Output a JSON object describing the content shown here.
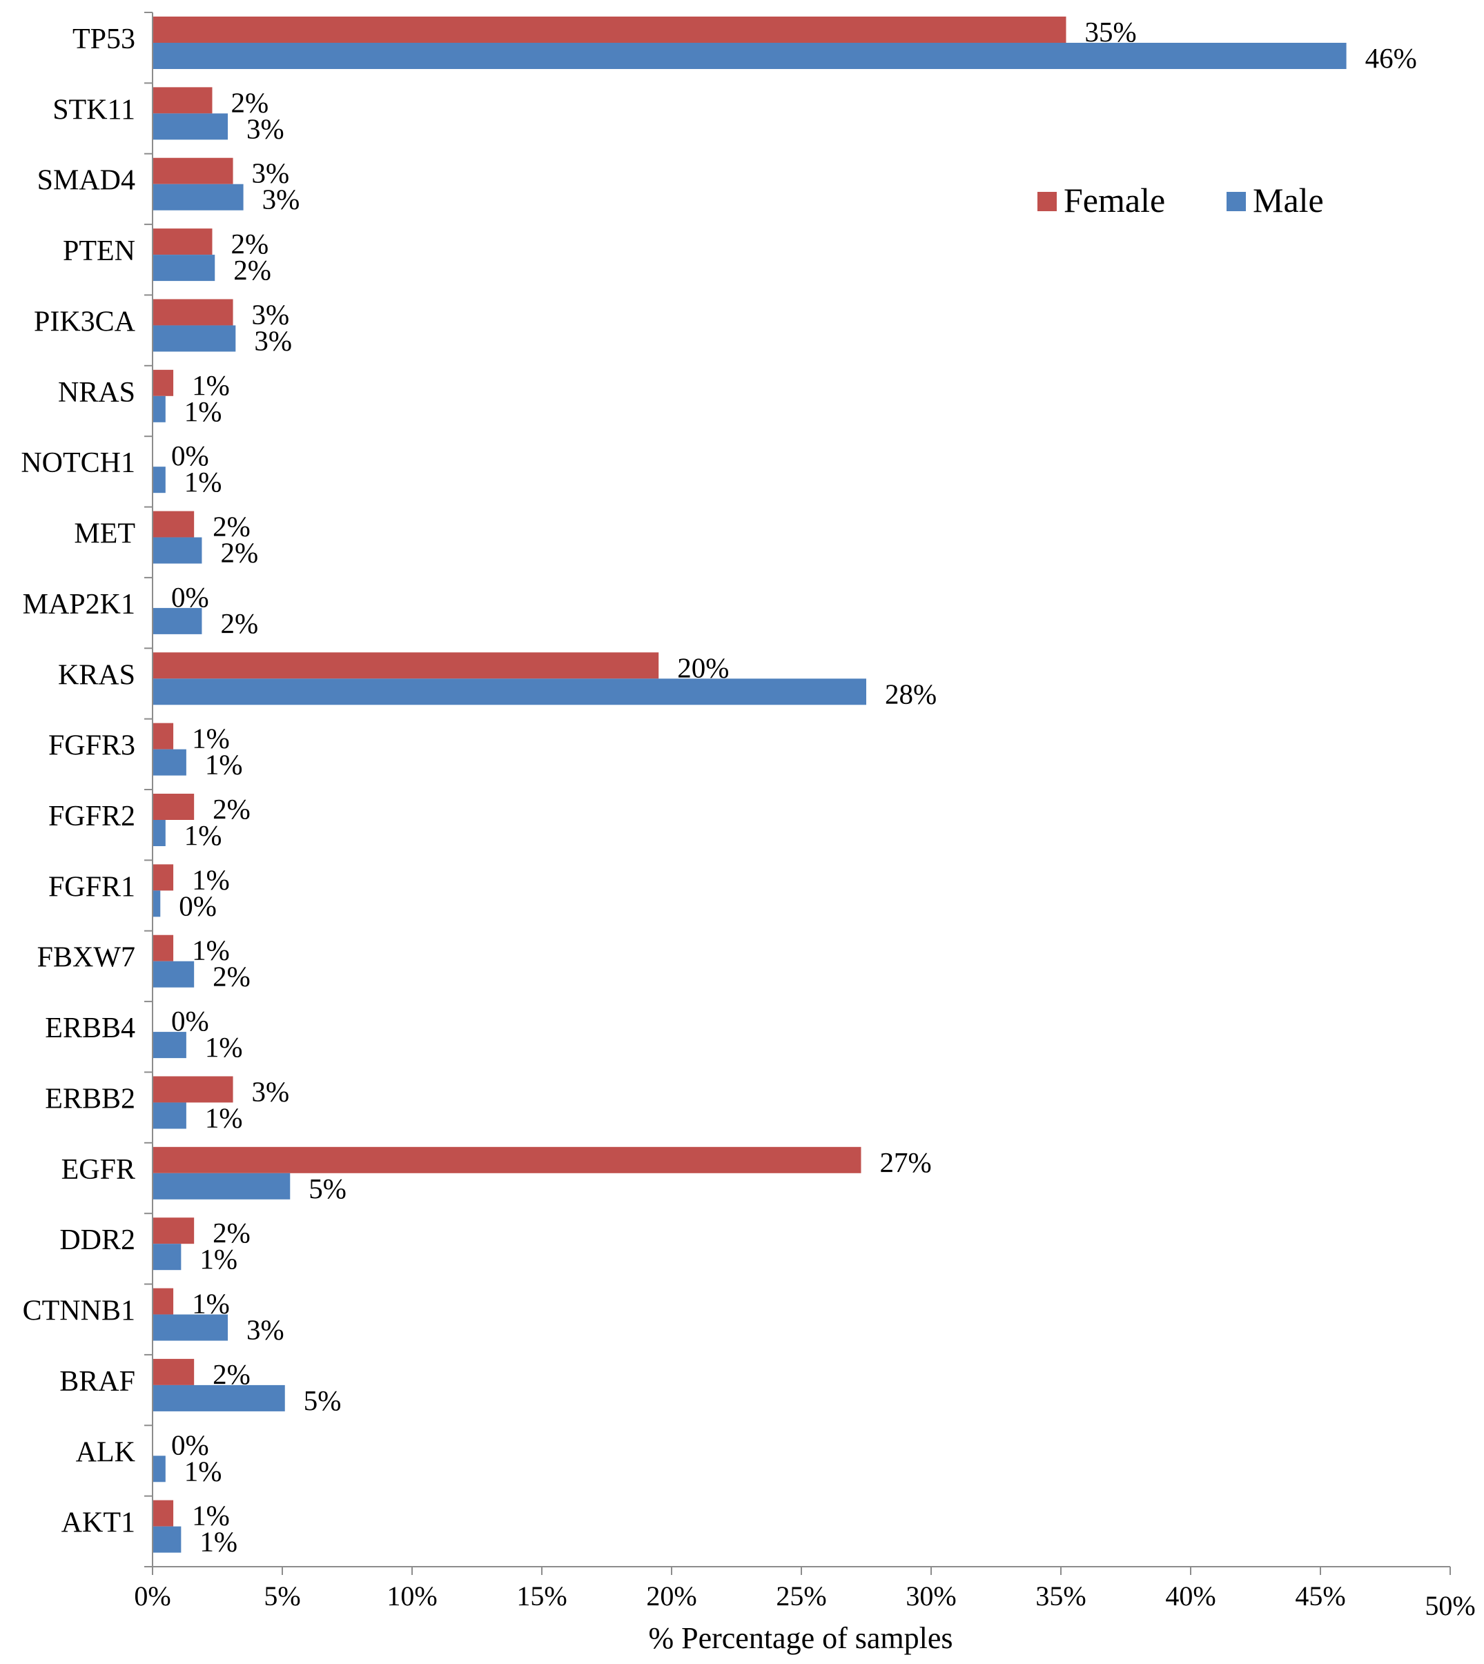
{
  "chart_data": {
    "type": "bar",
    "orientation": "horizontal",
    "xlabel": "%  Percentage of samples",
    "xlim": [
      0,
      50
    ],
    "x_ticks": [
      "0%",
      "5%",
      "10%",
      "15%",
      "20%",
      "25%",
      "30%",
      "35%",
      "40%",
      "45%",
      "50%"
    ],
    "legend_position": "top-right",
    "categories": [
      "TP53",
      "STK11",
      "SMAD4",
      "PTEN",
      "PIK3CA",
      "NRAS",
      "NOTCH1",
      "MET",
      "MAP2K1",
      "KRAS",
      "FGFR3",
      "FGFR2",
      "FGFR1",
      "FBXW7",
      "ERBB4",
      "ERBB2",
      "EGFR",
      "DDR2",
      "CTNNB1",
      "BRAF",
      "ALK",
      "AKT1"
    ],
    "series": [
      {
        "name": "Female",
        "color": "#c0504d",
        "values": [
          35.2,
          2.3,
          3.1,
          2.3,
          3.1,
          0.8,
          0.0,
          1.6,
          0.0,
          19.5,
          0.8,
          1.6,
          0.8,
          0.8,
          0.0,
          3.1,
          27.3,
          1.6,
          0.8,
          1.6,
          0.0,
          0.8
        ],
        "labels": [
          "35%",
          "2%",
          "3%",
          "2%",
          "3%",
          "1%",
          "0%",
          "2%",
          "0%",
          "20%",
          "1%",
          "2%",
          "1%",
          "1%",
          "0%",
          "3%",
          "27%",
          "2%",
          "1%",
          "2%",
          "0%",
          "1%"
        ]
      },
      {
        "name": "Male",
        "color": "#4f81bd",
        "values": [
          46.0,
          2.9,
          3.5,
          2.4,
          3.2,
          0.5,
          0.5,
          1.9,
          1.9,
          27.5,
          1.3,
          0.5,
          0.3,
          1.6,
          1.3,
          1.3,
          5.3,
          1.1,
          2.9,
          5.1,
          0.5,
          1.1
        ],
        "labels": [
          "46%",
          "3%",
          "3%",
          "2%",
          "3%",
          "1%",
          "1%",
          "2%",
          "2%",
          "28%",
          "1%",
          "1%",
          "0%",
          "2%",
          "1%",
          "1%",
          "5%",
          "1%",
          "3%",
          "5%",
          "1%",
          "1%"
        ]
      }
    ]
  }
}
